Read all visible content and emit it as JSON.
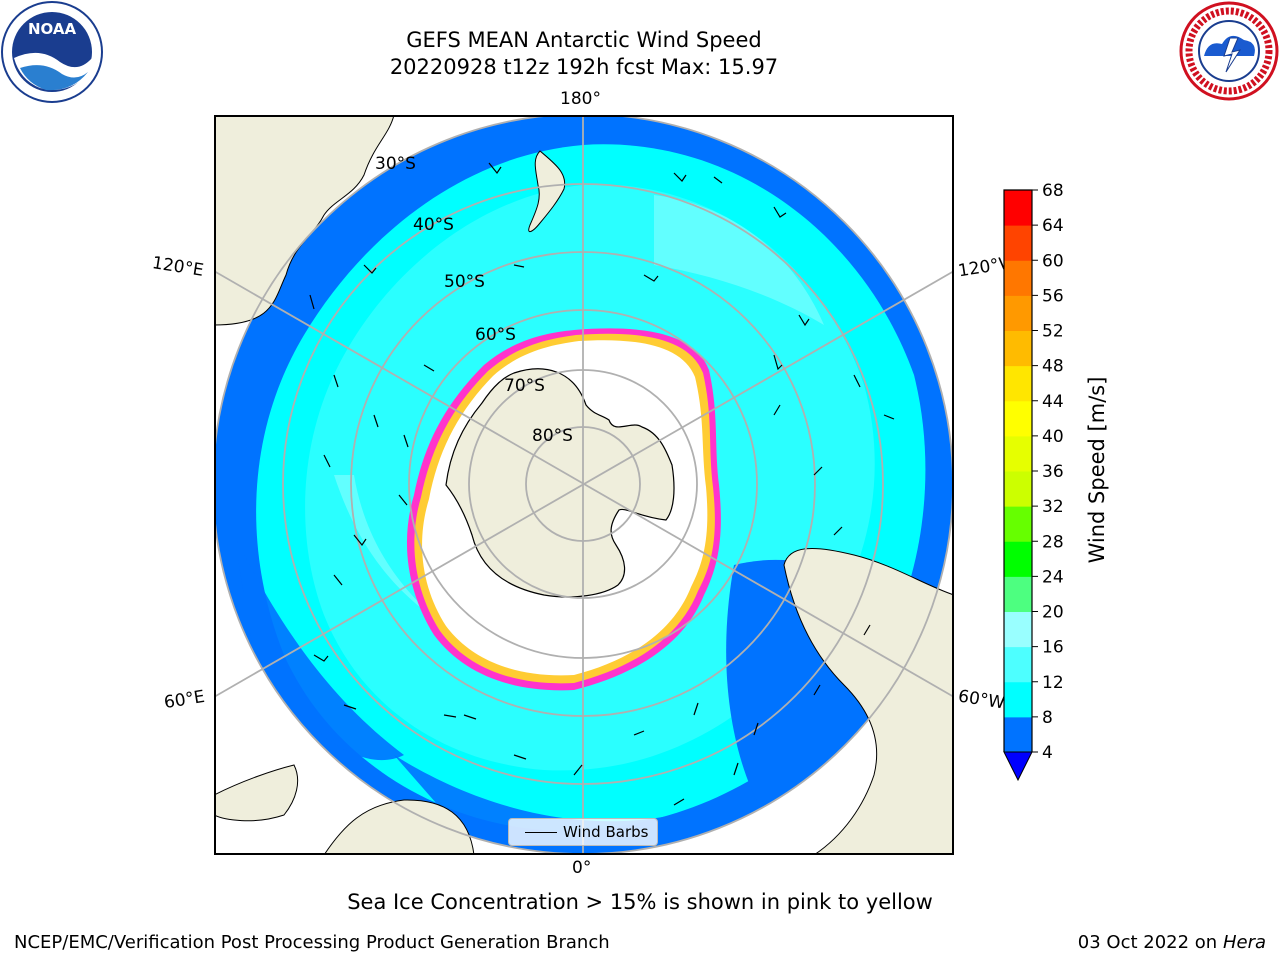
{
  "title": {
    "line1": "GEFS MEAN Antarctic Wind Speed",
    "line2": "20220928 t12z 192h fcst   Max: 15.97"
  },
  "map": {
    "projection": "south-polar-stereographic",
    "longitude_labels": [
      "180°",
      "120°E",
      "120°W",
      "60°E",
      "60°W",
      "0°"
    ],
    "latitude_labels": [
      "30°S",
      "40°S",
      "50°S",
      "60°S",
      "70°S",
      "80°S"
    ],
    "legend": {
      "label": "Wind Barbs"
    },
    "colors": {
      "land": "#efeedc",
      "ice_interior": "#ffffff",
      "sea_ice_edge": [
        "#ff33cc",
        "#ffcc33"
      ],
      "grid": "#b0b0b0"
    }
  },
  "colorbar": {
    "label": "Wind Speed [m/s]",
    "ticks": [
      4,
      8,
      12,
      16,
      20,
      24,
      28,
      32,
      36,
      40,
      44,
      48,
      52,
      56,
      60,
      64,
      68
    ],
    "colors": [
      "#0073ff",
      "#00ffff",
      "#4dffff",
      "#99ffff",
      "#4dff80",
      "#00ff00",
      "#66ff00",
      "#ccff00",
      "#e6ff00",
      "#ffff00",
      "#ffe600",
      "#ffbb00",
      "#ff9900",
      "#ff7700",
      "#ff4400",
      "#ff0000"
    ],
    "extend_color": "#0000ff"
  },
  "caption": "Sea Ice Concentration > 15% is shown in pink to yellow",
  "footer": {
    "left": "NCEP/EMC/Verification Post Processing Product Generation Branch",
    "right_prefix": "03 Oct 2022 on ",
    "right_host": "Hera"
  },
  "logos": {
    "noaa": "NOAA",
    "nws_icon": "national-weather-service-logo"
  }
}
